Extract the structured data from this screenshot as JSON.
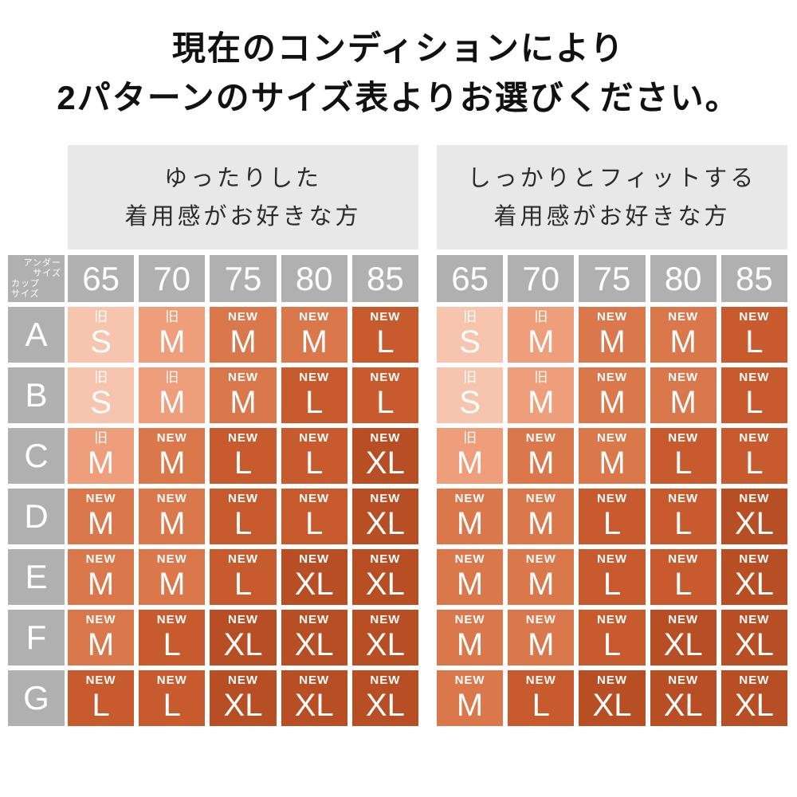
{
  "title": {
    "line1": "現在のコンディションにより",
    "line2": "2パターンのサイズ表よりお選びください。"
  },
  "corner": {
    "under_line1": "アンダー",
    "under_line2": "サイズ",
    "cup_line1": "カップ",
    "cup_line2": "サイズ"
  },
  "chart_data": [
    {
      "type": "table",
      "title": "ゆったりした着用感がお好きな方",
      "title_line1": "ゆったりした",
      "title_line2": "着用感がお好きな方",
      "col_axis_label": "アンダーサイズ",
      "row_axis_label": "カップサイズ",
      "columns": [
        "65",
        "70",
        "75",
        "80",
        "85"
      ],
      "rows": [
        "A",
        "B",
        "C",
        "D",
        "E",
        "F",
        "G"
      ],
      "values": [
        [
          "旧S",
          "旧M",
          "NEW M",
          "NEW M",
          "NEW L"
        ],
        [
          "旧S",
          "旧M",
          "NEW M",
          "NEW L",
          "NEW L"
        ],
        [
          "旧M",
          "NEW M",
          "NEW L",
          "NEW L",
          "NEW XL"
        ],
        [
          "NEW M",
          "NEW M",
          "NEW L",
          "NEW L",
          "NEW XL"
        ],
        [
          "NEW M",
          "NEW M",
          "NEW L",
          "NEW XL",
          "NEW XL"
        ],
        [
          "NEW M",
          "NEW L",
          "NEW XL",
          "NEW XL",
          "NEW XL"
        ],
        [
          "NEW L",
          "NEW L",
          "NEW XL",
          "NEW XL",
          "NEW XL"
        ]
      ]
    },
    {
      "type": "table",
      "title": "しっかりとフィットする着用感がお好きな方",
      "title_line1": "しっかりとフィットする",
      "title_line2": "着用感がお好きな方",
      "col_axis_label": "アンダーサイズ",
      "row_axis_label": "カップサイズ",
      "columns": [
        "65",
        "70",
        "75",
        "80",
        "85"
      ],
      "rows": [
        "A",
        "B",
        "C",
        "D",
        "E",
        "F",
        "G"
      ],
      "values": [
        [
          "旧S",
          "旧M",
          "NEW M",
          "NEW M",
          "NEW L"
        ],
        [
          "旧S",
          "旧M",
          "NEW M",
          "NEW M",
          "NEW L"
        ],
        [
          "旧M",
          "NEW M",
          "NEW M",
          "NEW L",
          "NEW L"
        ],
        [
          "NEW M",
          "NEW M",
          "NEW L",
          "NEW L",
          "NEW XL"
        ],
        [
          "NEW M",
          "NEW M",
          "NEW L",
          "NEW L",
          "NEW XL"
        ],
        [
          "NEW M",
          "NEW M",
          "NEW L",
          "NEW XL",
          "NEW XL"
        ],
        [
          "NEW M",
          "NEW L",
          "NEW XL",
          "NEW XL",
          "NEW XL"
        ]
      ]
    }
  ],
  "tags": {
    "old": "旧",
    "new": "NEW"
  },
  "colors": {
    "old_s": "#f7c4ae",
    "old_m": "#ee9e7a",
    "new_m": "#da774b",
    "new_l": "#c75b2e",
    "new_xl": "#b84e23",
    "header_gray": "#b1b0b0",
    "desc_bg": "#e9e8e8",
    "desc_text": "#2b2b2b",
    "title_text": "#111111",
    "cell_text": "#ffffff"
  }
}
